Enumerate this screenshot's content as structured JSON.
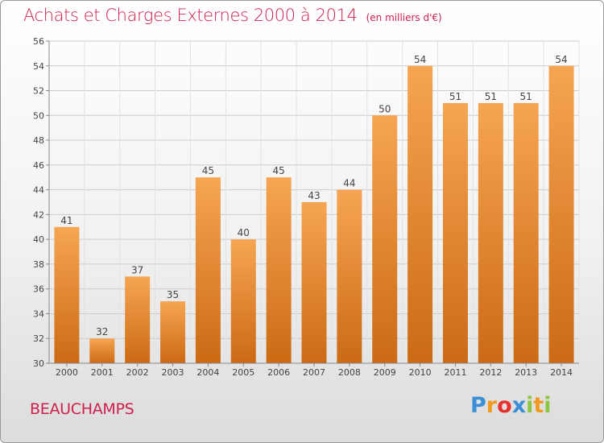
{
  "chart_data": {
    "type": "bar",
    "title": "Achats et Charges Externes 2000 à 2014",
    "unit": "(en milliers d'€)",
    "categories": [
      "2000",
      "2001",
      "2002",
      "2003",
      "2004",
      "2005",
      "2006",
      "2007",
      "2008",
      "2009",
      "2010",
      "2011",
      "2012",
      "2013",
      "2014"
    ],
    "values": [
      41,
      32,
      37,
      35,
      45,
      40,
      45,
      43,
      44,
      50,
      54,
      51,
      51,
      51,
      54
    ],
    "ylim": [
      30,
      56
    ],
    "yticks": [
      30,
      32,
      34,
      36,
      38,
      40,
      42,
      44,
      46,
      48,
      50,
      52,
      54,
      56
    ],
    "grid": true,
    "colors": {
      "bar_top": "#f6a552",
      "bar_bottom": "#cc6a14",
      "title": "#d0204c",
      "grid": "#cccccc"
    }
  },
  "place": "BEAUCHAMPS",
  "logo": {
    "text": "Proxiti"
  }
}
